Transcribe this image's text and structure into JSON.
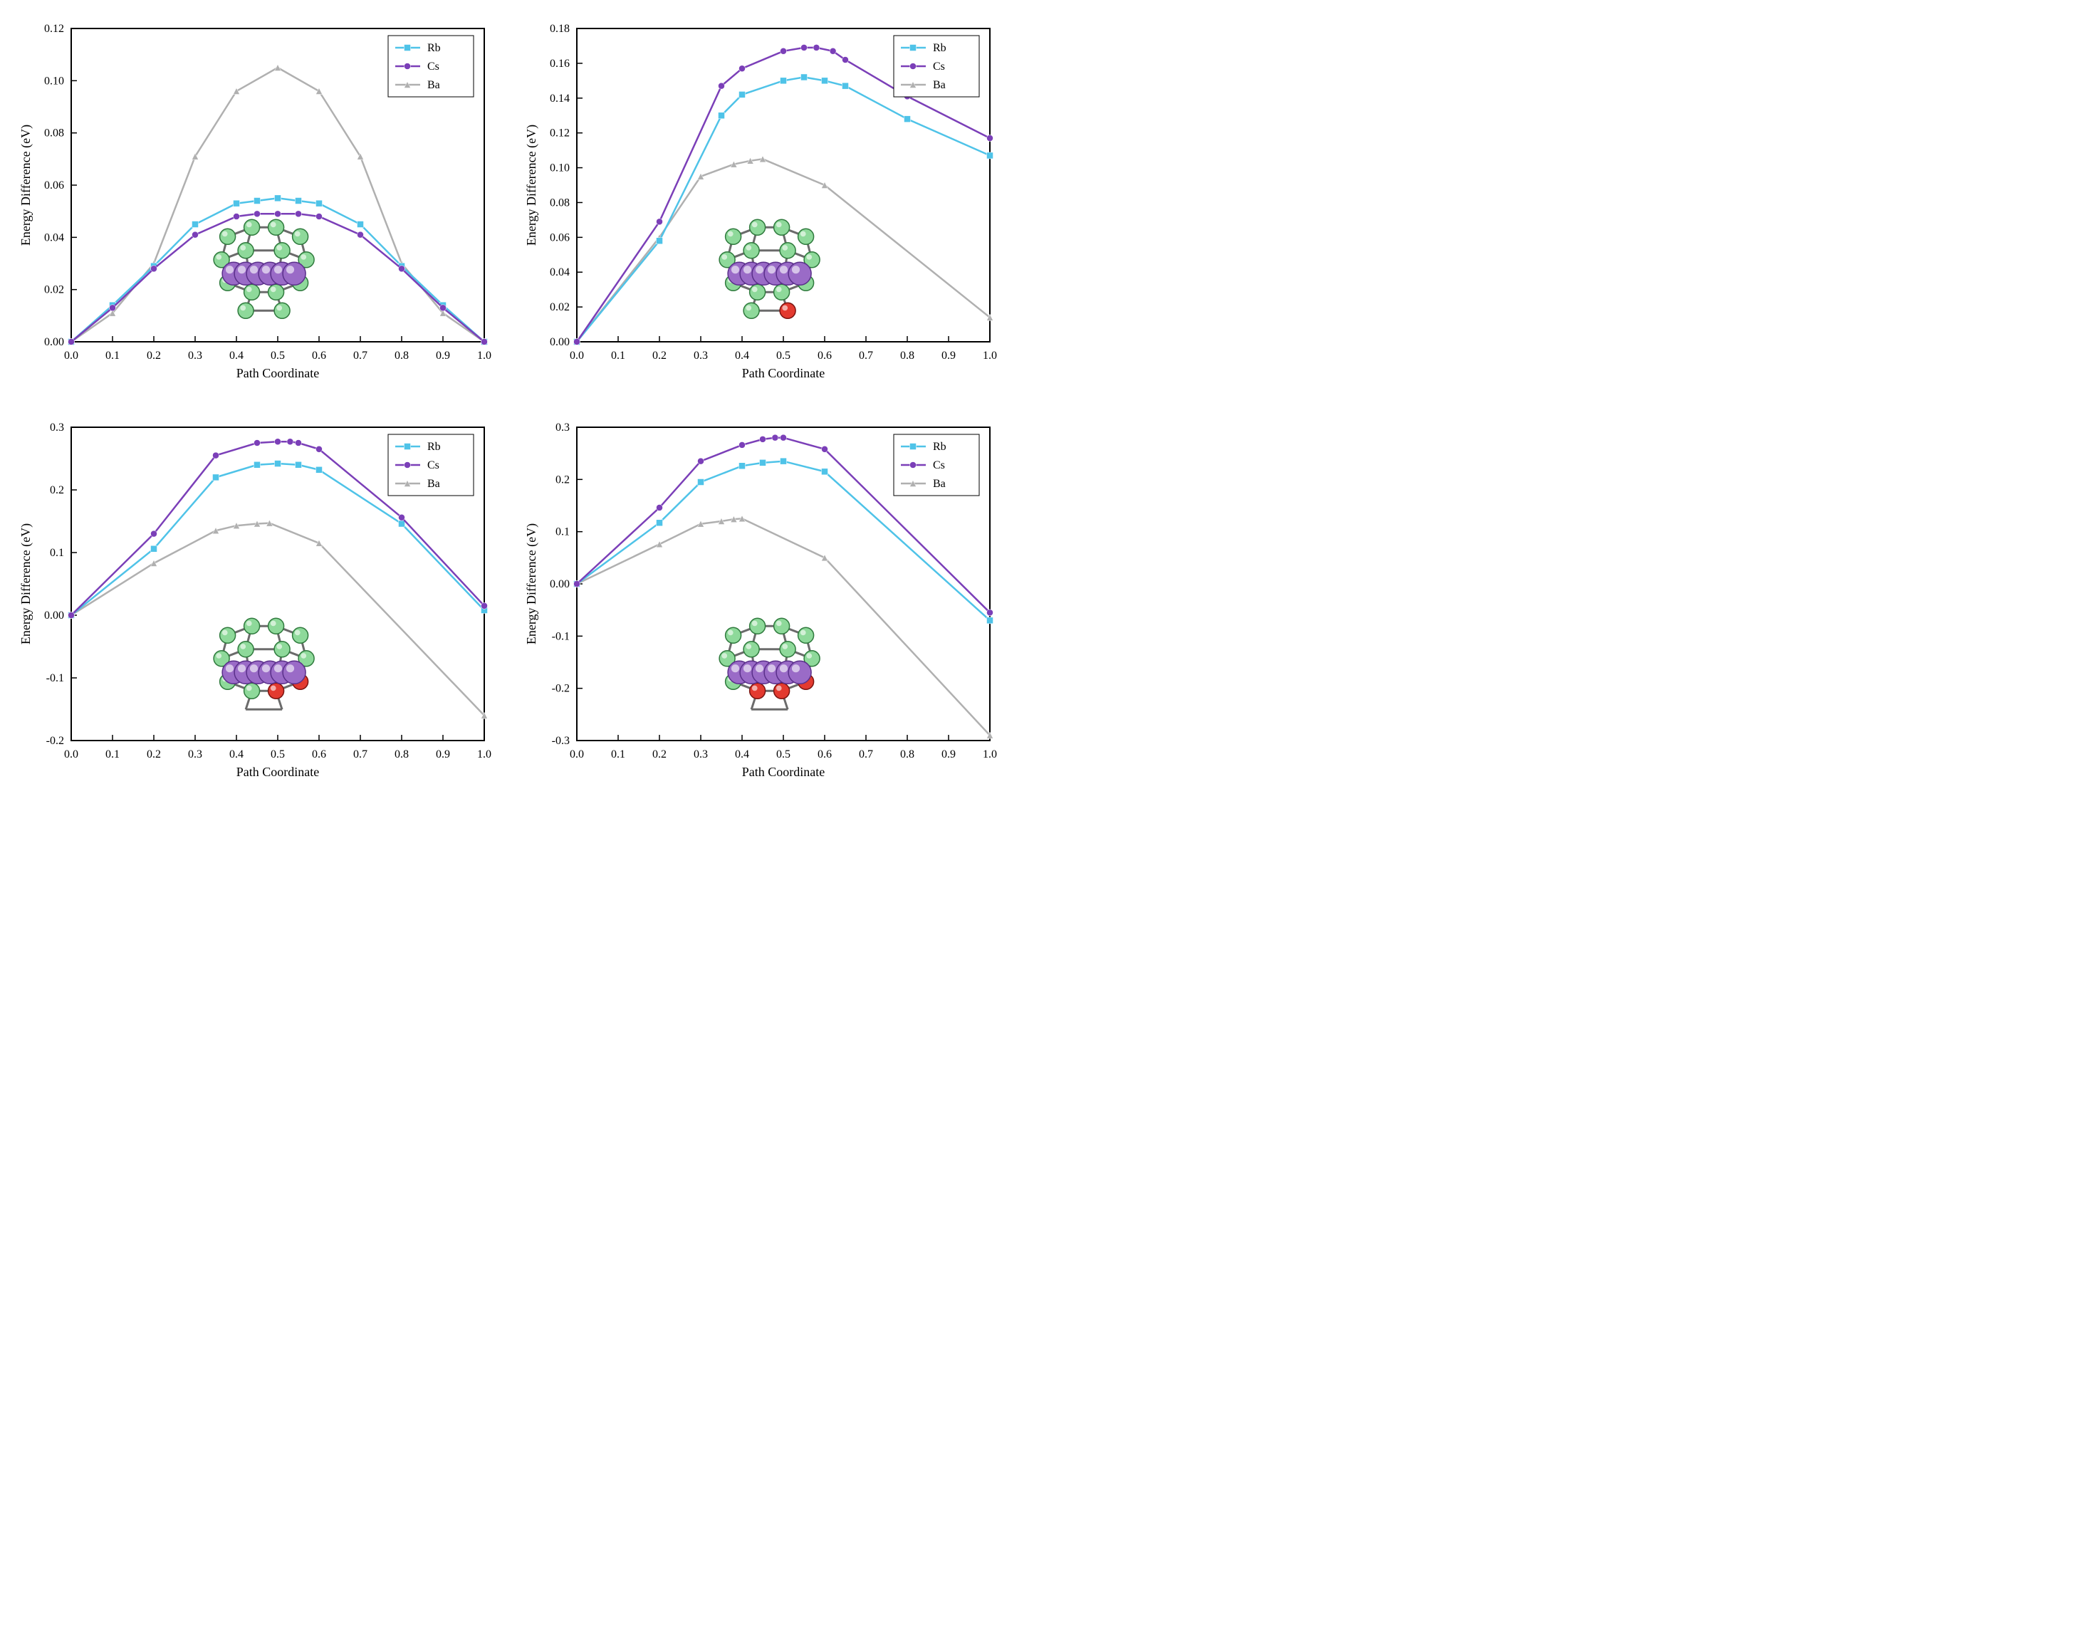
{
  "common": {
    "xlabel": "Path Coordinate",
    "ylabel": "Energy Difference (eV)",
    "legend": [
      "Rb",
      "Cs",
      "Ba"
    ],
    "colors": {
      "Rb": "#4fc3e8",
      "Cs": "#7b3fb8",
      "Ba": "#b0b0b0"
    },
    "font": {
      "axis_label_size_pt": 18,
      "tick_size_pt": 16,
      "legend_size_pt": 16
    },
    "background": "#ffffff",
    "axis_color": "#000000",
    "line_width": 2.5,
    "marker_size": 7
  },
  "panels": [
    {
      "id": "p1",
      "type": "line+marker",
      "xlim": [
        0,
        1
      ],
      "xticks": [
        0,
        0.1,
        0.2,
        0.3,
        0.4,
        0.5,
        0.6,
        0.7,
        0.8,
        0.9,
        1.0
      ],
      "ylim": [
        0,
        0.12
      ],
      "yticks": [
        0,
        0.02,
        0.04,
        0.06,
        0.08,
        0.1,
        0.12
      ],
      "series": {
        "Rb": {
          "x": [
            0,
            0.1,
            0.2,
            0.3,
            0.4,
            0.45,
            0.5,
            0.55,
            0.6,
            0.7,
            0.8,
            0.9,
            1.0
          ],
          "y": [
            0,
            0.014,
            0.029,
            0.045,
            0.053,
            0.054,
            0.055,
            0.054,
            0.053,
            0.045,
            0.029,
            0.014,
            0
          ],
          "marker": "square"
        },
        "Cs": {
          "x": [
            0,
            0.1,
            0.2,
            0.3,
            0.4,
            0.45,
            0.5,
            0.55,
            0.6,
            0.7,
            0.8,
            0.9,
            1.0
          ],
          "y": [
            0,
            0.013,
            0.028,
            0.041,
            0.048,
            0.049,
            0.049,
            0.049,
            0.048,
            0.041,
            0.028,
            0.013,
            0
          ],
          "marker": "circle"
        },
        "Ba": {
          "x": [
            0,
            0.1,
            0.2,
            0.3,
            0.4,
            0.5,
            0.6,
            0.7,
            0.8,
            0.9,
            1.0
          ],
          "y": [
            0,
            0.011,
            0.03,
            0.071,
            0.096,
            0.105,
            0.096,
            0.071,
            0.03,
            0.011,
            0
          ],
          "marker": "triangle"
        }
      },
      "inset": {
        "green_count": 14,
        "red_count": 0,
        "purple_row": true
      }
    },
    {
      "id": "p2",
      "type": "line+marker",
      "xlim": [
        0,
        1
      ],
      "xticks": [
        0,
        0.1,
        0.2,
        0.3,
        0.4,
        0.5,
        0.6,
        0.7,
        0.8,
        0.9,
        1.0
      ],
      "ylim": [
        0,
        0.18
      ],
      "yticks": [
        0,
        0.02,
        0.04,
        0.06,
        0.08,
        0.1,
        0.12,
        0.14,
        0.16,
        0.18
      ],
      "series": {
        "Rb": {
          "x": [
            0,
            0.2,
            0.35,
            0.4,
            0.5,
            0.55,
            0.6,
            0.65,
            0.8,
            1.0
          ],
          "y": [
            0,
            0.058,
            0.13,
            0.142,
            0.15,
            0.152,
            0.15,
            0.147,
            0.128,
            0.107
          ],
          "marker": "square"
        },
        "Cs": {
          "x": [
            0,
            0.2,
            0.35,
            0.4,
            0.5,
            0.55,
            0.58,
            0.62,
            0.65,
            0.8,
            1.0
          ],
          "y": [
            0,
            0.069,
            0.147,
            0.157,
            0.167,
            0.169,
            0.169,
            0.167,
            0.162,
            0.141,
            0.117
          ],
          "marker": "circle"
        },
        "Ba": {
          "x": [
            0,
            0.2,
            0.3,
            0.38,
            0.42,
            0.45,
            0.6,
            1.0
          ],
          "y": [
            0,
            0.06,
            0.095,
            0.102,
            0.104,
            0.105,
            0.09,
            0.014
          ],
          "marker": "triangle"
        }
      },
      "inset": {
        "green_count": 14,
        "red_count": 1,
        "purple_row": true
      }
    },
    {
      "id": "p3",
      "type": "line+marker",
      "xlim": [
        0,
        1
      ],
      "xticks": [
        0,
        0.1,
        0.2,
        0.3,
        0.4,
        0.5,
        0.6,
        0.7,
        0.8,
        0.9,
        1.0
      ],
      "ylim": [
        -0.2,
        0.3
      ],
      "yticks": [
        -0.2,
        -0.1,
        0,
        0.1,
        0.2,
        0.3
      ],
      "series": {
        "Rb": {
          "x": [
            0,
            0.2,
            0.35,
            0.45,
            0.5,
            0.55,
            0.6,
            0.8,
            1.0
          ],
          "y": [
            0,
            0.106,
            0.22,
            0.24,
            0.242,
            0.24,
            0.232,
            0.146,
            0.008
          ],
          "marker": "square"
        },
        "Cs": {
          "x": [
            0,
            0.2,
            0.35,
            0.45,
            0.5,
            0.53,
            0.55,
            0.6,
            0.8,
            1.0
          ],
          "y": [
            0,
            0.13,
            0.255,
            0.275,
            0.277,
            0.277,
            0.275,
            0.265,
            0.156,
            0.015
          ],
          "marker": "circle"
        },
        "Ba": {
          "x": [
            0,
            0.2,
            0.35,
            0.4,
            0.45,
            0.48,
            0.6,
            1.0
          ],
          "y": [
            0,
            0.083,
            0.135,
            0.143,
            0.146,
            0.147,
            0.115,
            -0.16
          ],
          "marker": "triangle"
        }
      },
      "inset": {
        "green_count": 12,
        "red_count": 2,
        "purple_row": true
      }
    },
    {
      "id": "p4",
      "type": "line+marker",
      "xlim": [
        0,
        1
      ],
      "xticks": [
        0,
        0.1,
        0.2,
        0.3,
        0.4,
        0.5,
        0.6,
        0.7,
        0.8,
        0.9,
        1.0
      ],
      "ylim": [
        -0.3,
        0.3
      ],
      "yticks": [
        -0.3,
        -0.2,
        -0.1,
        0,
        0.1,
        0.2,
        0.3
      ],
      "series": {
        "Rb": {
          "x": [
            0,
            0.2,
            0.3,
            0.4,
            0.45,
            0.5,
            0.6,
            1.0
          ],
          "y": [
            0,
            0.117,
            0.195,
            0.226,
            0.232,
            0.235,
            0.215,
            -0.07
          ],
          "marker": "square"
        },
        "Cs": {
          "x": [
            0,
            0.2,
            0.3,
            0.4,
            0.45,
            0.48,
            0.5,
            0.6,
            1.0
          ],
          "y": [
            0,
            0.146,
            0.235,
            0.266,
            0.277,
            0.28,
            0.28,
            0.258,
            -0.055
          ],
          "marker": "circle"
        },
        "Ba": {
          "x": [
            0,
            0.2,
            0.3,
            0.35,
            0.38,
            0.4,
            0.6,
            1.0
          ],
          "y": [
            0,
            0.076,
            0.115,
            0.12,
            0.124,
            0.125,
            0.05,
            -0.29
          ],
          "marker": "triangle"
        }
      },
      "inset": {
        "green_count": 12,
        "red_count": 3,
        "purple_row": true
      }
    }
  ]
}
